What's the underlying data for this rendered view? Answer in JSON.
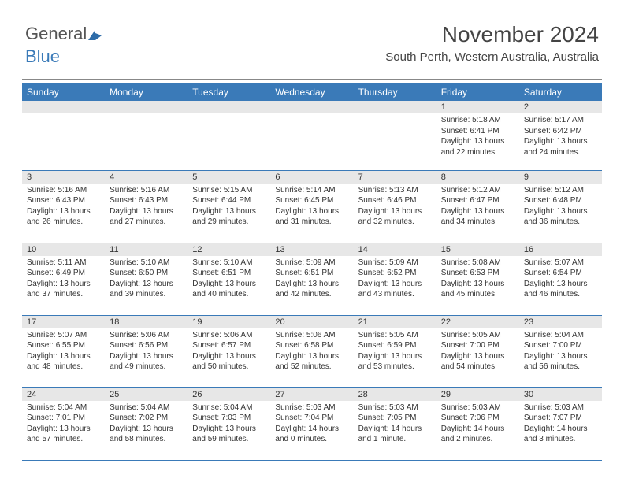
{
  "logo": {
    "part1": "General",
    "part2": "Blue"
  },
  "header": {
    "month_title": "November 2024",
    "location": "South Perth, Western Australia, Australia"
  },
  "style": {
    "accent_color": "#3a7ab8",
    "daynum_bg": "#e7e7e7",
    "text_color": "#333333",
    "header_text_color": "#444444",
    "th_fontsize": 12,
    "daynum_fontsize": 11,
    "body_fontsize": 10,
    "title_fontsize": 28,
    "location_fontsize": 15
  },
  "days_of_week": [
    "Sunday",
    "Monday",
    "Tuesday",
    "Wednesday",
    "Thursday",
    "Friday",
    "Saturday"
  ],
  "weeks": [
    [
      null,
      null,
      null,
      null,
      null,
      {
        "n": "1",
        "sunrise": "Sunrise: 5:18 AM",
        "sunset": "Sunset: 6:41 PM",
        "daylight": "Daylight: 13 hours and 22 minutes."
      },
      {
        "n": "2",
        "sunrise": "Sunrise: 5:17 AM",
        "sunset": "Sunset: 6:42 PM",
        "daylight": "Daylight: 13 hours and 24 minutes."
      }
    ],
    [
      {
        "n": "3",
        "sunrise": "Sunrise: 5:16 AM",
        "sunset": "Sunset: 6:43 PM",
        "daylight": "Daylight: 13 hours and 26 minutes."
      },
      {
        "n": "4",
        "sunrise": "Sunrise: 5:16 AM",
        "sunset": "Sunset: 6:43 PM",
        "daylight": "Daylight: 13 hours and 27 minutes."
      },
      {
        "n": "5",
        "sunrise": "Sunrise: 5:15 AM",
        "sunset": "Sunset: 6:44 PM",
        "daylight": "Daylight: 13 hours and 29 minutes."
      },
      {
        "n": "6",
        "sunrise": "Sunrise: 5:14 AM",
        "sunset": "Sunset: 6:45 PM",
        "daylight": "Daylight: 13 hours and 31 minutes."
      },
      {
        "n": "7",
        "sunrise": "Sunrise: 5:13 AM",
        "sunset": "Sunset: 6:46 PM",
        "daylight": "Daylight: 13 hours and 32 minutes."
      },
      {
        "n": "8",
        "sunrise": "Sunrise: 5:12 AM",
        "sunset": "Sunset: 6:47 PM",
        "daylight": "Daylight: 13 hours and 34 minutes."
      },
      {
        "n": "9",
        "sunrise": "Sunrise: 5:12 AM",
        "sunset": "Sunset: 6:48 PM",
        "daylight": "Daylight: 13 hours and 36 minutes."
      }
    ],
    [
      {
        "n": "10",
        "sunrise": "Sunrise: 5:11 AM",
        "sunset": "Sunset: 6:49 PM",
        "daylight": "Daylight: 13 hours and 37 minutes."
      },
      {
        "n": "11",
        "sunrise": "Sunrise: 5:10 AM",
        "sunset": "Sunset: 6:50 PM",
        "daylight": "Daylight: 13 hours and 39 minutes."
      },
      {
        "n": "12",
        "sunrise": "Sunrise: 5:10 AM",
        "sunset": "Sunset: 6:51 PM",
        "daylight": "Daylight: 13 hours and 40 minutes."
      },
      {
        "n": "13",
        "sunrise": "Sunrise: 5:09 AM",
        "sunset": "Sunset: 6:51 PM",
        "daylight": "Daylight: 13 hours and 42 minutes."
      },
      {
        "n": "14",
        "sunrise": "Sunrise: 5:09 AM",
        "sunset": "Sunset: 6:52 PM",
        "daylight": "Daylight: 13 hours and 43 minutes."
      },
      {
        "n": "15",
        "sunrise": "Sunrise: 5:08 AM",
        "sunset": "Sunset: 6:53 PM",
        "daylight": "Daylight: 13 hours and 45 minutes."
      },
      {
        "n": "16",
        "sunrise": "Sunrise: 5:07 AM",
        "sunset": "Sunset: 6:54 PM",
        "daylight": "Daylight: 13 hours and 46 minutes."
      }
    ],
    [
      {
        "n": "17",
        "sunrise": "Sunrise: 5:07 AM",
        "sunset": "Sunset: 6:55 PM",
        "daylight": "Daylight: 13 hours and 48 minutes."
      },
      {
        "n": "18",
        "sunrise": "Sunrise: 5:06 AM",
        "sunset": "Sunset: 6:56 PM",
        "daylight": "Daylight: 13 hours and 49 minutes."
      },
      {
        "n": "19",
        "sunrise": "Sunrise: 5:06 AM",
        "sunset": "Sunset: 6:57 PM",
        "daylight": "Daylight: 13 hours and 50 minutes."
      },
      {
        "n": "20",
        "sunrise": "Sunrise: 5:06 AM",
        "sunset": "Sunset: 6:58 PM",
        "daylight": "Daylight: 13 hours and 52 minutes."
      },
      {
        "n": "21",
        "sunrise": "Sunrise: 5:05 AM",
        "sunset": "Sunset: 6:59 PM",
        "daylight": "Daylight: 13 hours and 53 minutes."
      },
      {
        "n": "22",
        "sunrise": "Sunrise: 5:05 AM",
        "sunset": "Sunset: 7:00 PM",
        "daylight": "Daylight: 13 hours and 54 minutes."
      },
      {
        "n": "23",
        "sunrise": "Sunrise: 5:04 AM",
        "sunset": "Sunset: 7:00 PM",
        "daylight": "Daylight: 13 hours and 56 minutes."
      }
    ],
    [
      {
        "n": "24",
        "sunrise": "Sunrise: 5:04 AM",
        "sunset": "Sunset: 7:01 PM",
        "daylight": "Daylight: 13 hours and 57 minutes."
      },
      {
        "n": "25",
        "sunrise": "Sunrise: 5:04 AM",
        "sunset": "Sunset: 7:02 PM",
        "daylight": "Daylight: 13 hours and 58 minutes."
      },
      {
        "n": "26",
        "sunrise": "Sunrise: 5:04 AM",
        "sunset": "Sunset: 7:03 PM",
        "daylight": "Daylight: 13 hours and 59 minutes."
      },
      {
        "n": "27",
        "sunrise": "Sunrise: 5:03 AM",
        "sunset": "Sunset: 7:04 PM",
        "daylight": "Daylight: 14 hours and 0 minutes."
      },
      {
        "n": "28",
        "sunrise": "Sunrise: 5:03 AM",
        "sunset": "Sunset: 7:05 PM",
        "daylight": "Daylight: 14 hours and 1 minute."
      },
      {
        "n": "29",
        "sunrise": "Sunrise: 5:03 AM",
        "sunset": "Sunset: 7:06 PM",
        "daylight": "Daylight: 14 hours and 2 minutes."
      },
      {
        "n": "30",
        "sunrise": "Sunrise: 5:03 AM",
        "sunset": "Sunset: 7:07 PM",
        "daylight": "Daylight: 14 hours and 3 minutes."
      }
    ]
  ]
}
